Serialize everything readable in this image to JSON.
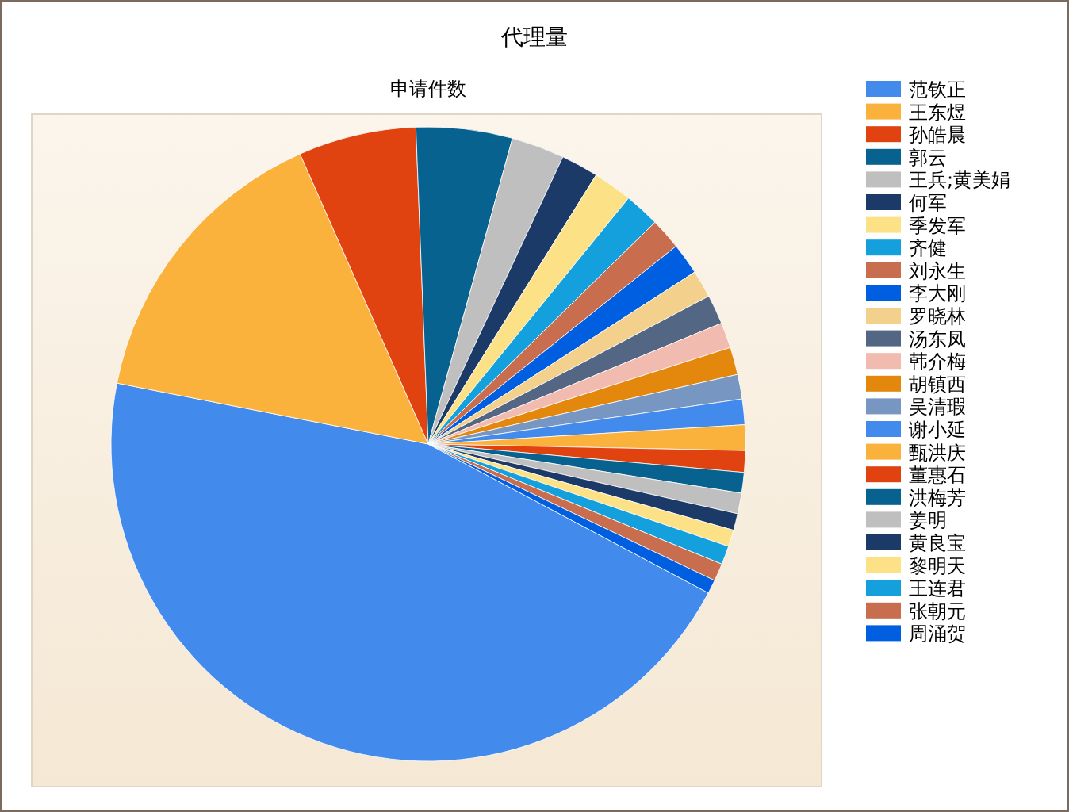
{
  "chart_data": {
    "type": "pie",
    "title": "代理量",
    "subtitle": "申请件数",
    "legend": "right",
    "categories": [
      "范钦正",
      "王东煜",
      "孙皓晨",
      "郭云",
      "王兵;黄美娟",
      "何军",
      "季发军",
      "齐健",
      "刘永生",
      "李大刚",
      "罗晓林",
      "汤东凤",
      "韩介梅",
      "胡镇西",
      "吴清瑕",
      "谢小延",
      "甄洪庆",
      "董惠石",
      "洪梅芳",
      "姜明",
      "黄良宝",
      "黎明天",
      "王连君",
      "张朝元",
      "周涌贺"
    ],
    "values": [
      45.3,
      15.3,
      6,
      4.9,
      2.7,
      1.9,
      2,
      1.8,
      1.6,
      1.6,
      1.4,
      1.5,
      1.3,
      1.4,
      1.25,
      1.3,
      1.3,
      1.1,
      1.05,
      1.05,
      0.85,
      0.85,
      0.95,
      0.9,
      0.7
    ],
    "colors": [
      "#428bed",
      "#fbb23d",
      "#e0430f",
      "#08628f",
      "#bfbfbf",
      "#1c3a68",
      "#fde187",
      "#13a0dc",
      "#c96d4f",
      "#005ee0",
      "#f3d18c",
      "#536683",
      "#f1bcaf",
      "#e3870d",
      "#7896c2",
      "#428bed",
      "#fbb23d",
      "#e0430f",
      "#08628f",
      "#bfbfbf",
      "#1c3a68",
      "#fde187",
      "#13a0dc",
      "#c96d4f",
      "#005ee0"
    ]
  }
}
